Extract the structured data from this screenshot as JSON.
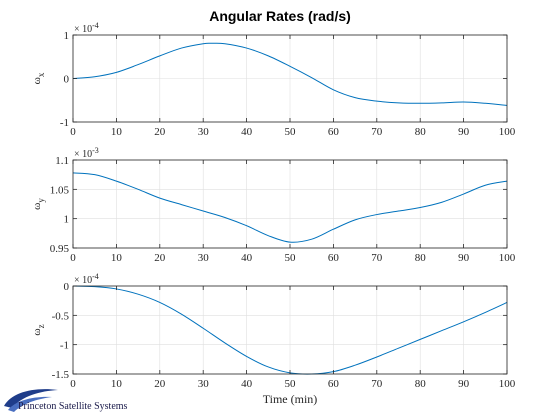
{
  "chart_data": [
    {
      "type": "line",
      "title": "Angular Rates (rad/s)",
      "ylabel": "ω",
      "ylabel_sub": "x",
      "exponent_label": "× 10",
      "exponent_power": "-4",
      "xlim": [
        0,
        100
      ],
      "ylim": [
        -1,
        1
      ],
      "xticks": [
        "0",
        "10",
        "20",
        "30",
        "40",
        "50",
        "60",
        "70",
        "80",
        "90",
        "100"
      ],
      "yticks": [
        {
          "value": -1,
          "label": "-1"
        },
        {
          "value": 0,
          "label": "0"
        },
        {
          "value": 1,
          "label": "1"
        }
      ],
      "grid": true,
      "color": "#0072bd",
      "series": [
        {
          "x": [
            0,
            5,
            10,
            15,
            20,
            25,
            30,
            32,
            35,
            40,
            45,
            50,
            55,
            60,
            65,
            70,
            75,
            80,
            85,
            90,
            95,
            100
          ],
          "y": [
            0,
            0.04,
            0.14,
            0.32,
            0.52,
            0.7,
            0.8,
            0.81,
            0.8,
            0.7,
            0.52,
            0.28,
            0.02,
            -0.26,
            -0.44,
            -0.52,
            -0.56,
            -0.57,
            -0.56,
            -0.54,
            -0.57,
            -0.62
          ]
        }
      ]
    },
    {
      "type": "line",
      "ylabel": "ω",
      "ylabel_sub": "y",
      "exponent_label": "× 10",
      "exponent_power": "-3",
      "xlim": [
        0,
        100
      ],
      "ylim": [
        0.95,
        1.1
      ],
      "xticks": [
        "0",
        "10",
        "20",
        "30",
        "40",
        "50",
        "60",
        "70",
        "80",
        "90",
        "100"
      ],
      "yticks": [
        {
          "value": 0.95,
          "label": "0.95"
        },
        {
          "value": 1.0,
          "label": "1"
        },
        {
          "value": 1.05,
          "label": "1.05"
        },
        {
          "value": 1.1,
          "label": "1.1"
        }
      ],
      "grid": true,
      "color": "#0072bd",
      "series": [
        {
          "x": [
            0,
            5,
            10,
            15,
            20,
            25,
            30,
            35,
            40,
            45,
            50,
            55,
            60,
            65,
            70,
            75,
            80,
            85,
            90,
            95,
            100
          ],
          "y": [
            1.078,
            1.075,
            1.064,
            1.05,
            1.035,
            1.024,
            1.013,
            1.002,
            0.988,
            0.971,
            0.96,
            0.965,
            0.982,
            0.998,
            1.007,
            1.013,
            1.019,
            1.028,
            1.042,
            1.057,
            1.064
          ]
        }
      ]
    },
    {
      "type": "line",
      "ylabel": "ω",
      "ylabel_sub": "z",
      "exponent_label": "× 10",
      "exponent_power": "-4",
      "xlabel": "Time (min)",
      "xlim": [
        0,
        100
      ],
      "ylim": [
        -1.5,
        0
      ],
      "xticks": [
        "0",
        "10",
        "20",
        "30",
        "40",
        "50",
        "60",
        "70",
        "80",
        "90",
        "100"
      ],
      "yticks": [
        {
          "value": -1.5,
          "label": "-1.5"
        },
        {
          "value": -1.0,
          "label": "-1"
        },
        {
          "value": -0.5,
          "label": "-0.5"
        },
        {
          "value": 0,
          "label": "0"
        }
      ],
      "grid": true,
      "color": "#0072bd",
      "series": [
        {
          "x": [
            0,
            5,
            10,
            15,
            20,
            25,
            30,
            35,
            40,
            45,
            50,
            55,
            60,
            65,
            70,
            75,
            80,
            85,
            90,
            95,
            100
          ],
          "y": [
            0,
            -0.01,
            -0.05,
            -0.14,
            -0.28,
            -0.48,
            -0.72,
            -0.97,
            -1.2,
            -1.38,
            -1.48,
            -1.5,
            -1.46,
            -1.35,
            -1.21,
            -1.06,
            -0.91,
            -0.76,
            -0.61,
            -0.45,
            -0.28
          ]
        }
      ]
    }
  ],
  "logo": {
    "text": "Princeton Satellite Systems",
    "color": "#1f3d8a"
  }
}
